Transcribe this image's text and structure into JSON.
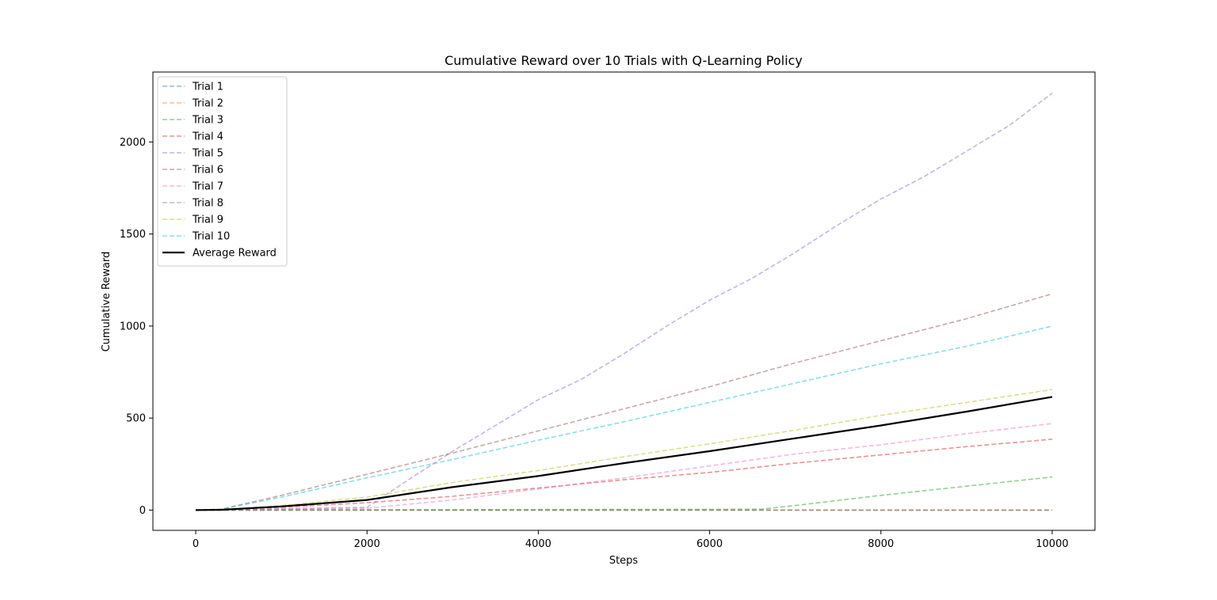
{
  "chart_data": {
    "type": "line",
    "title": "Cumulative Reward over 10 Trials with Q-Learning Policy",
    "xlabel": "Steps",
    "ylabel": "Cumulative Reward",
    "xlim": [
      -500,
      10500
    ],
    "ylim": [
      -110,
      2380
    ],
    "xticks": [
      0,
      2000,
      4000,
      6000,
      8000,
      10000
    ],
    "yticks": [
      0,
      500,
      1000,
      1500,
      2000
    ],
    "grid": false,
    "legend_position": "upper-left",
    "series": [
      {
        "name": "Trial 1",
        "color": "#1f77b4",
        "style": "dashed",
        "x": [
          0,
          10000
        ],
        "y": [
          0,
          0
        ]
      },
      {
        "name": "Trial 2",
        "color": "#ff7f0e",
        "style": "dashed",
        "x": [
          0,
          10000
        ],
        "y": [
          0,
          0
        ]
      },
      {
        "name": "Trial 3",
        "color": "#2ca02c",
        "style": "dashed",
        "x": [
          0,
          6600,
          7000,
          8000,
          9000,
          10000
        ],
        "y": [
          0,
          5,
          25,
          80,
          130,
          180
        ]
      },
      {
        "name": "Trial 4",
        "color": "#d62728",
        "style": "dashed",
        "x": [
          0,
          500,
          1000,
          2000,
          3000,
          4000,
          5000,
          6000,
          7000,
          8000,
          9000,
          10000
        ],
        "y": [
          0,
          5,
          15,
          40,
          75,
          120,
          165,
          205,
          255,
          300,
          345,
          385
        ]
      },
      {
        "name": "Trial 5",
        "color": "#9467bd",
        "style": "dashed",
        "x": [
          0,
          2000,
          2500,
          3000,
          3500,
          4000,
          4500,
          5000,
          5500,
          6000,
          6500,
          7000,
          7500,
          8000,
          8500,
          9000,
          9500,
          10000
        ],
        "y": [
          0,
          15,
          170,
          320,
          460,
          600,
          710,
          850,
          1000,
          1140,
          1260,
          1400,
          1550,
          1690,
          1810,
          1950,
          2090,
          2265
        ]
      },
      {
        "name": "Trial 6",
        "color": "#8c564b",
        "style": "dashed",
        "x": [
          0,
          300,
          1000,
          2000,
          3000,
          4000,
          5000,
          6000,
          7000,
          8000,
          9000,
          10000
        ],
        "y": [
          0,
          5,
          80,
          195,
          310,
          430,
          550,
          670,
          800,
          920,
          1040,
          1175
        ]
      },
      {
        "name": "Trial 7",
        "color": "#e377c2",
        "style": "dashed",
        "x": [
          0,
          2000,
          3000,
          4000,
          5000,
          6000,
          7000,
          8000,
          9000,
          10000
        ],
        "y": [
          0,
          10,
          55,
          115,
          175,
          240,
          305,
          355,
          415,
          470
        ]
      },
      {
        "name": "Trial 8",
        "color": "#7f7f7f",
        "style": "dashed",
        "x": [
          0,
          10000
        ],
        "y": [
          0,
          0
        ]
      },
      {
        "name": "Trial 9",
        "color": "#bcbd22",
        "style": "dashed",
        "x": [
          0,
          500,
          1000,
          2000,
          3000,
          4000,
          5000,
          6000,
          7000,
          8000,
          9000,
          10000
        ],
        "y": [
          0,
          8,
          25,
          70,
          150,
          215,
          290,
          360,
          435,
          515,
          585,
          655
        ]
      },
      {
        "name": "Trial 10",
        "color": "#17becf",
        "style": "dashed",
        "x": [
          0,
          300,
          1000,
          2000,
          3000,
          4000,
          5000,
          6000,
          7000,
          8000,
          9000,
          10000
        ],
        "y": [
          0,
          5,
          70,
          175,
          275,
          380,
          480,
          585,
          690,
          795,
          890,
          1000
        ]
      },
      {
        "name": "Average Reward",
        "color": "#000000",
        "style": "solid",
        "x": [
          0,
          300,
          1000,
          2000,
          3000,
          4000,
          5000,
          6000,
          7000,
          8000,
          9000,
          10000
        ],
        "y": [
          0,
          2,
          20,
          55,
          125,
          185,
          255,
          320,
          390,
          460,
          535,
          615
        ]
      }
    ]
  }
}
